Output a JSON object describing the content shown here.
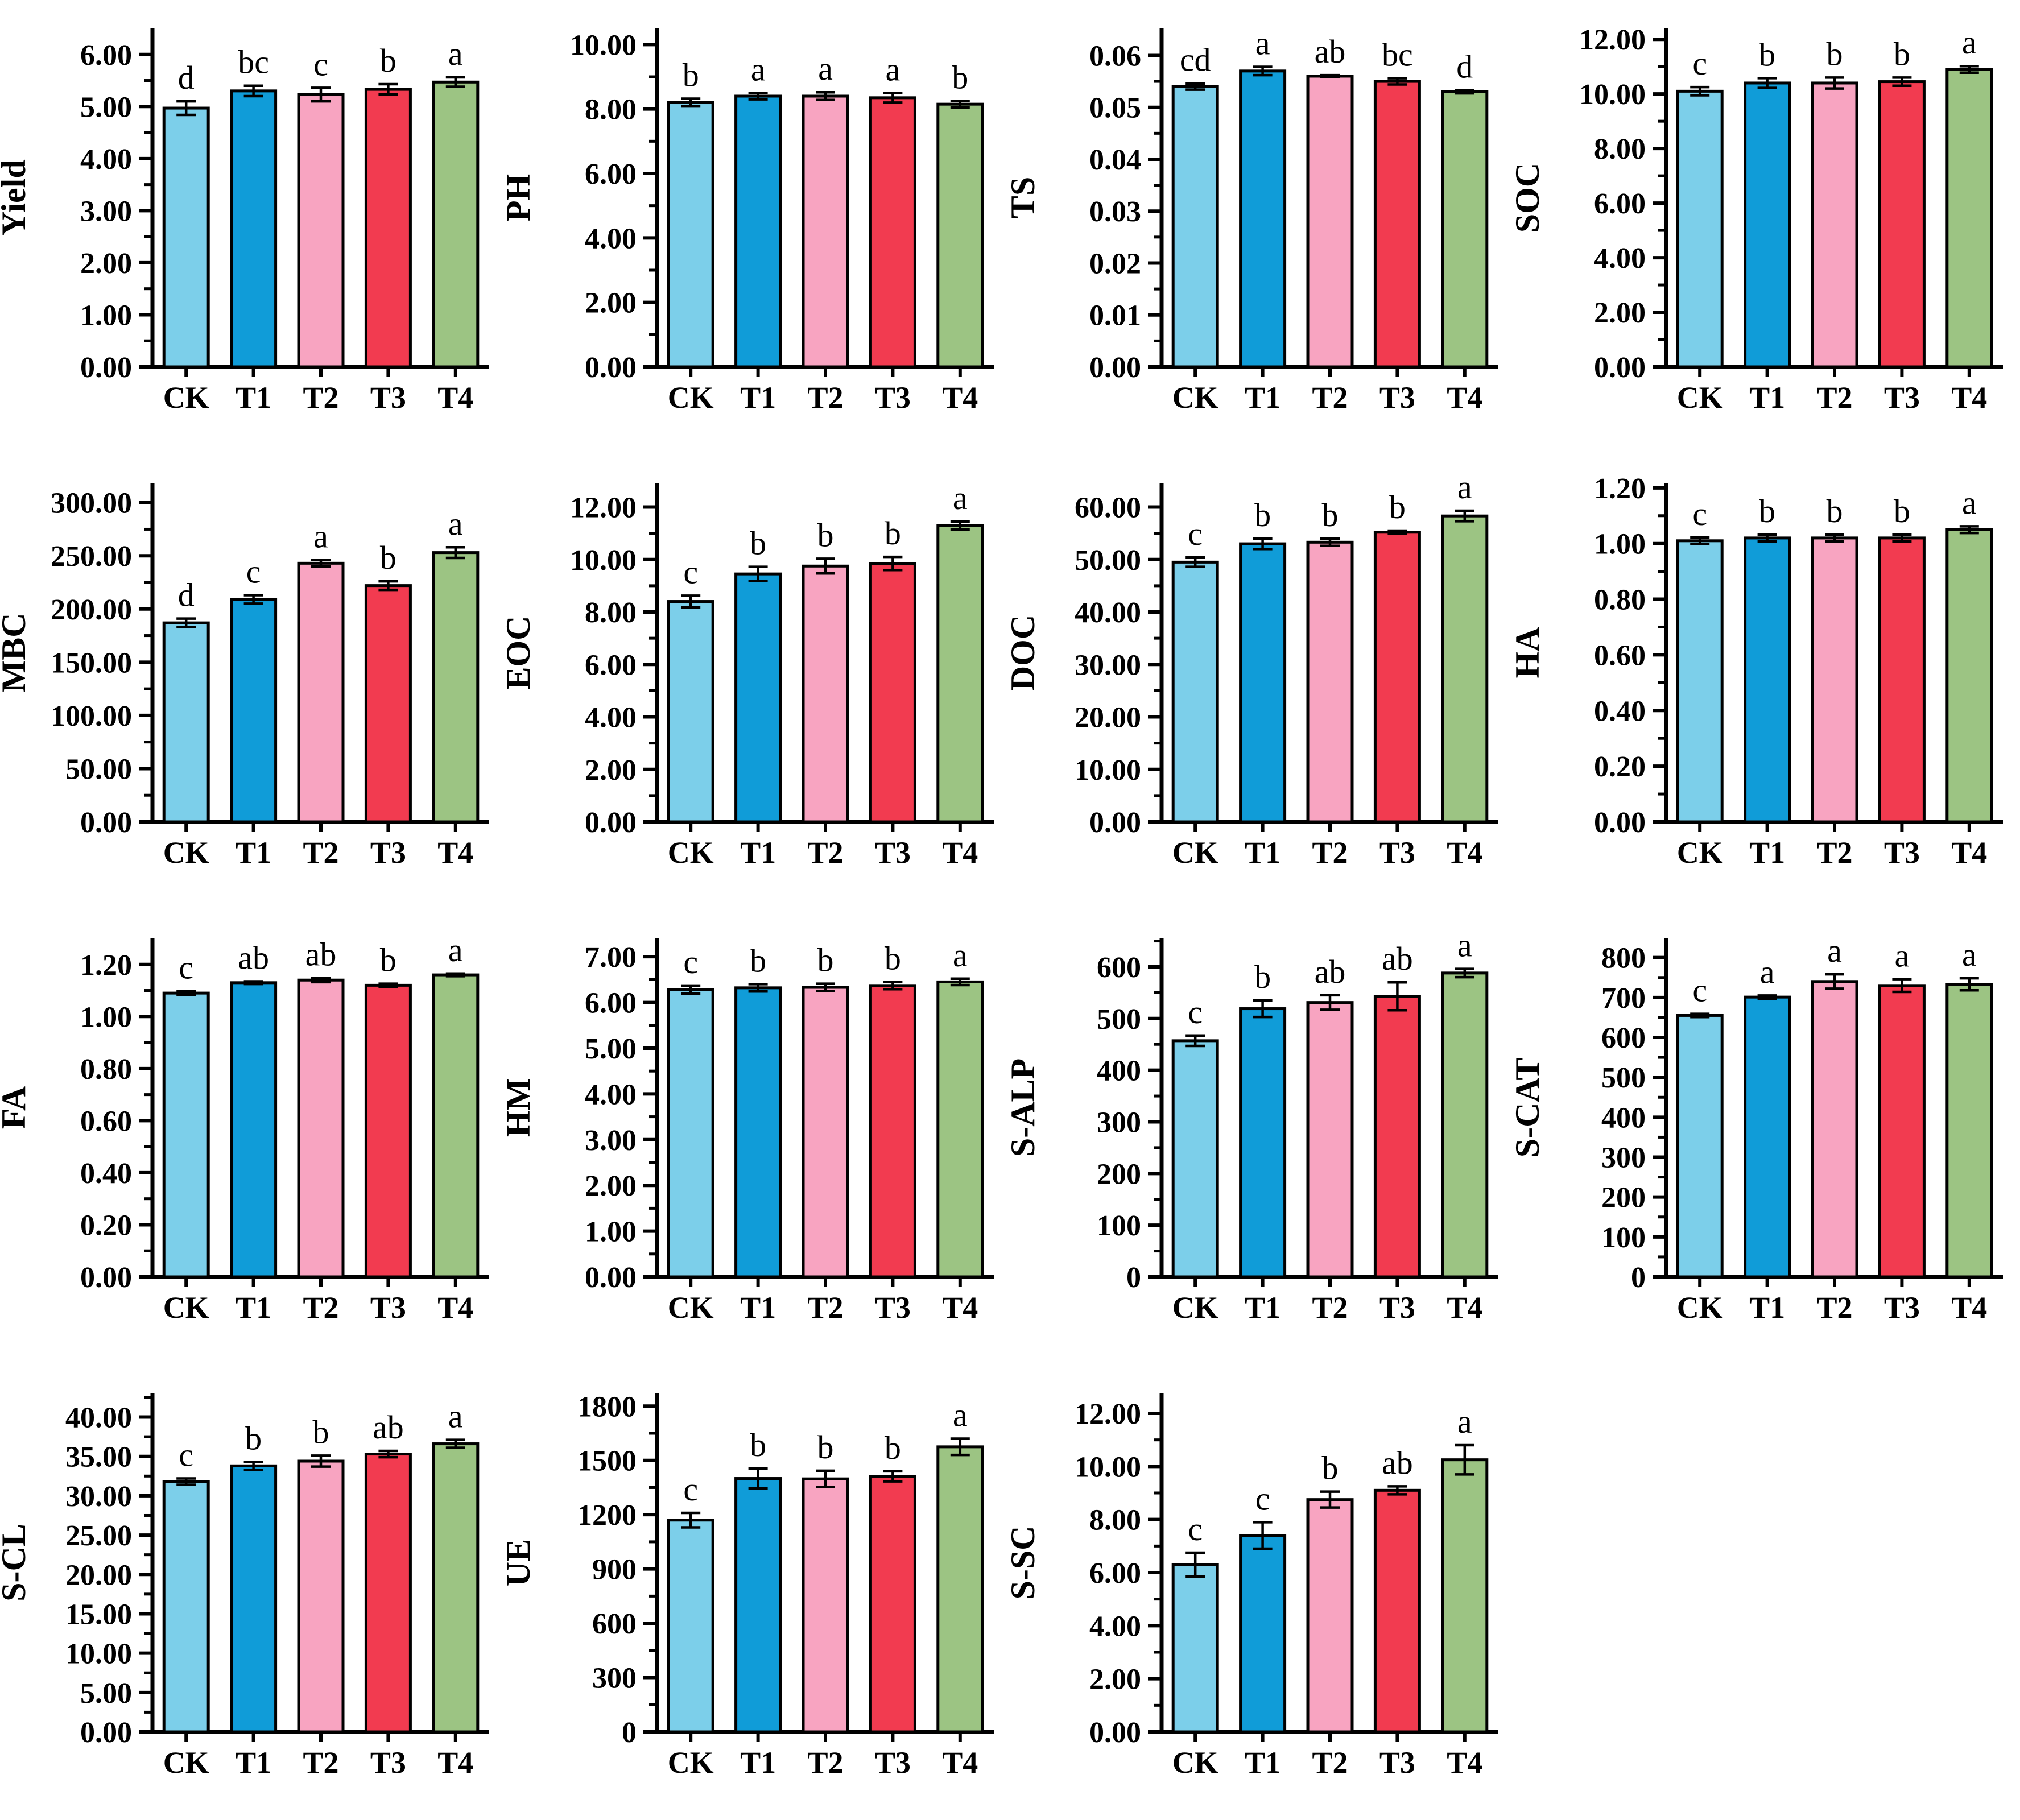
{
  "page": {
    "background": "#ffffff"
  },
  "categories": [
    "CK",
    "T1",
    "T2",
    "T3",
    "T4"
  ],
  "bar_colors": [
    "#7CCFEA",
    "#109CD8",
    "#F8A4C1",
    "#F23B50",
    "#9CC483"
  ],
  "bar_stroke": "#000000",
  "chart_data": [
    {
      "type": "bar",
      "title": "",
      "ylabel": "Yield",
      "categories": [
        "CK",
        "T1",
        "T2",
        "T3",
        "T4"
      ],
      "values": [
        4.97,
        5.3,
        5.23,
        5.33,
        5.47
      ],
      "errors": [
        0.13,
        0.1,
        0.13,
        0.1,
        0.09
      ],
      "sig_letters": [
        "d",
        "bc",
        "c",
        "b",
        "a"
      ],
      "ylim": [
        0,
        6.5
      ],
      "ytick_max": 6,
      "ytick_step": 1,
      "decimals": 2,
      "grid": false,
      "legend": "none"
    },
    {
      "type": "bar",
      "title": "",
      "ylabel": "PH",
      "categories": [
        "CK",
        "T1",
        "T2",
        "T3",
        "T4"
      ],
      "values": [
        8.2,
        8.4,
        8.4,
        8.35,
        8.15
      ],
      "errors": [
        0.12,
        0.1,
        0.12,
        0.15,
        0.1
      ],
      "sig_letters": [
        "b",
        "a",
        "a",
        "a",
        "b"
      ],
      "ylim": [
        0,
        10.5
      ],
      "ytick_max": 10,
      "ytick_step": 2,
      "decimals": 2,
      "grid": false,
      "legend": "none"
    },
    {
      "type": "bar",
      "title": "",
      "ylabel": "TS",
      "categories": [
        "CK",
        "T1",
        "T2",
        "T3",
        "T4"
      ],
      "values": [
        0.054,
        0.057,
        0.056,
        0.055,
        0.053
      ],
      "errors": [
        0.0006,
        0.0008,
        0.0002,
        0.0006,
        0.0003
      ],
      "sig_letters": [
        "cd",
        "a",
        "ab",
        "bc",
        "d"
      ],
      "ylim": [
        0,
        0.0652
      ],
      "ytick_max": 0.06,
      "ytick_step": 0.01,
      "decimals": 2,
      "grid": false,
      "legend": "none"
    },
    {
      "type": "bar",
      "title": "",
      "ylabel": "SOC",
      "categories": [
        "CK",
        "T1",
        "T2",
        "T3",
        "T4"
      ],
      "values": [
        10.1,
        10.4,
        10.4,
        10.45,
        10.9
      ],
      "errors": [
        0.15,
        0.18,
        0.2,
        0.15,
        0.12
      ],
      "sig_letters": [
        "c",
        "b",
        "b",
        "b",
        "a"
      ],
      "ylim": [
        0,
        12.4
      ],
      "ytick_max": 12,
      "ytick_step": 2,
      "decimals": 2,
      "grid": false,
      "legend": "none"
    },
    {
      "type": "bar",
      "title": "",
      "ylabel": "MBC",
      "categories": [
        "CK",
        "T1",
        "T2",
        "T3",
        "T4"
      ],
      "values": [
        187,
        209,
        243,
        222,
        253
      ],
      "errors": [
        4,
        4,
        3,
        4,
        5
      ],
      "sig_letters": [
        "d",
        "c",
        "a",
        "b",
        "a"
      ],
      "ylim": [
        0,
        318
      ],
      "ytick_max": 300,
      "ytick_step": 50,
      "decimals": 2,
      "grid": false,
      "legend": "none"
    },
    {
      "type": "bar",
      "title": "",
      "ylabel": "EOC",
      "categories": [
        "CK",
        "T1",
        "T2",
        "T3",
        "T4"
      ],
      "values": [
        8.4,
        9.45,
        9.75,
        9.85,
        11.3
      ],
      "errors": [
        0.22,
        0.27,
        0.28,
        0.25,
        0.15
      ],
      "sig_letters": [
        "c",
        "b",
        "b",
        "b",
        "a"
      ],
      "ylim": [
        0,
        12.9
      ],
      "ytick_max": 12,
      "ytick_step": 2,
      "decimals": 2,
      "grid": false,
      "legend": "none"
    },
    {
      "type": "bar",
      "title": "",
      "ylabel": "DOC",
      "categories": [
        "CK",
        "T1",
        "T2",
        "T3",
        "T4"
      ],
      "values": [
        49.5,
        53.0,
        53.3,
        55.2,
        58.3
      ],
      "errors": [
        0.9,
        1.0,
        0.7,
        0.3,
        1.0
      ],
      "sig_letters": [
        "c",
        "b",
        "b",
        "b",
        "a"
      ],
      "ylim": [
        0,
        64.5
      ],
      "ytick_max": 60,
      "ytick_step": 10,
      "decimals": 2,
      "grid": false,
      "legend": "none"
    },
    {
      "type": "bar",
      "title": "",
      "ylabel": "HA",
      "categories": [
        "CK",
        "T1",
        "T2",
        "T3",
        "T4"
      ],
      "values": [
        1.01,
        1.02,
        1.02,
        1.02,
        1.05
      ],
      "errors": [
        0.012,
        0.012,
        0.012,
        0.012,
        0.012
      ],
      "sig_letters": [
        "c",
        "b",
        "b",
        "b",
        "a"
      ],
      "ylim": [
        0,
        1.216
      ],
      "ytick_max": 1.2,
      "ytick_step": 0.2,
      "decimals": 2,
      "grid": false,
      "legend": "none"
    },
    {
      "type": "bar",
      "title": "",
      "ylabel": "FA",
      "categories": [
        "CK",
        "T1",
        "T2",
        "T3",
        "T4"
      ],
      "values": [
        1.09,
        1.13,
        1.14,
        1.12,
        1.16
      ],
      "errors": [
        0.008,
        0.005,
        0.008,
        0.006,
        0.005
      ],
      "sig_letters": [
        "c",
        "ab",
        "ab",
        "b",
        "a"
      ],
      "ylim": [
        0,
        1.3
      ],
      "ytick_max": 1.2,
      "ytick_step": 0.2,
      "decimals": 2,
      "grid": false,
      "legend": "none"
    },
    {
      "type": "bar",
      "title": "",
      "ylabel": "HM",
      "categories": [
        "CK",
        "T1",
        "T2",
        "T3",
        "T4"
      ],
      "values": [
        6.28,
        6.32,
        6.33,
        6.37,
        6.45
      ],
      "errors": [
        0.09,
        0.08,
        0.08,
        0.08,
        0.07
      ],
      "sig_letters": [
        "c",
        "b",
        "b",
        "b",
        "a"
      ],
      "ylim": [
        0,
        7.4
      ],
      "ytick_max": 7,
      "ytick_step": 1,
      "decimals": 2,
      "grid": false,
      "legend": "none"
    },
    {
      "type": "bar",
      "title": "",
      "ylabel": "S-ALP",
      "categories": [
        "CK",
        "T1",
        "T2",
        "T3",
        "T4"
      ],
      "values": [
        457,
        519,
        531,
        543,
        588
      ],
      "errors": [
        10,
        16,
        14,
        27,
        8
      ],
      "sig_letters": [
        "c",
        "b",
        "ab",
        "ab",
        "a"
      ],
      "ylim": [
        0,
        655
      ],
      "ytick_max": 600,
      "ytick_step": 100,
      "decimals": 0,
      "grid": false,
      "legend": "none"
    },
    {
      "type": "bar",
      "title": "",
      "ylabel": "S-CAT",
      "categories": [
        "CK",
        "T1",
        "T2",
        "T3",
        "T4"
      ],
      "values": [
        655,
        701,
        740,
        730,
        733
      ],
      "errors": [
        4,
        4,
        18,
        16,
        15
      ],
      "sig_letters": [
        "c",
        "a",
        "a",
        "a",
        "a"
      ],
      "ylim": [
        0,
        848
      ],
      "ytick_max": 800,
      "ytick_step": 100,
      "decimals": 0,
      "grid": false,
      "legend": "none"
    },
    {
      "type": "bar",
      "title": "",
      "ylabel": "S-CL",
      "categories": [
        "CK",
        "T1",
        "T2",
        "T3",
        "T4"
      ],
      "values": [
        31.8,
        33.8,
        34.4,
        35.3,
        36.6
      ],
      "errors": [
        0.4,
        0.5,
        0.7,
        0.4,
        0.5
      ],
      "sig_letters": [
        "c",
        "b",
        "b",
        "ab",
        "a"
      ],
      "ylim": [
        0,
        43
      ],
      "ytick_max": 40,
      "ytick_step": 5,
      "decimals": 2,
      "grid": false,
      "legend": "none"
    },
    {
      "type": "bar",
      "title": "",
      "ylabel": "UE",
      "categories": [
        "CK",
        "T1",
        "T2",
        "T3",
        "T4"
      ],
      "values": [
        1170,
        1400,
        1398,
        1412,
        1575
      ],
      "errors": [
        40,
        55,
        45,
        28,
        45
      ],
      "sig_letters": [
        "c",
        "b",
        "b",
        "b",
        "a"
      ],
      "ylim": [
        0,
        1870
      ],
      "ytick_max": 1800,
      "ytick_step": 300,
      "decimals": 0,
      "grid": false,
      "legend": "none"
    },
    {
      "type": "bar",
      "title": "",
      "ylabel": "S-SC",
      "categories": [
        "CK",
        "T1",
        "T2",
        "T3",
        "T4"
      ],
      "values": [
        6.3,
        7.4,
        8.75,
        9.1,
        10.25
      ],
      "errors": [
        0.45,
        0.5,
        0.3,
        0.15,
        0.55
      ],
      "sig_letters": [
        "c",
        "c",
        "b",
        "ab",
        "a"
      ],
      "ylim": [
        0,
        12.75
      ],
      "ytick_max": 12,
      "ytick_step": 2,
      "decimals": 2,
      "grid": false,
      "legend": "none"
    }
  ]
}
